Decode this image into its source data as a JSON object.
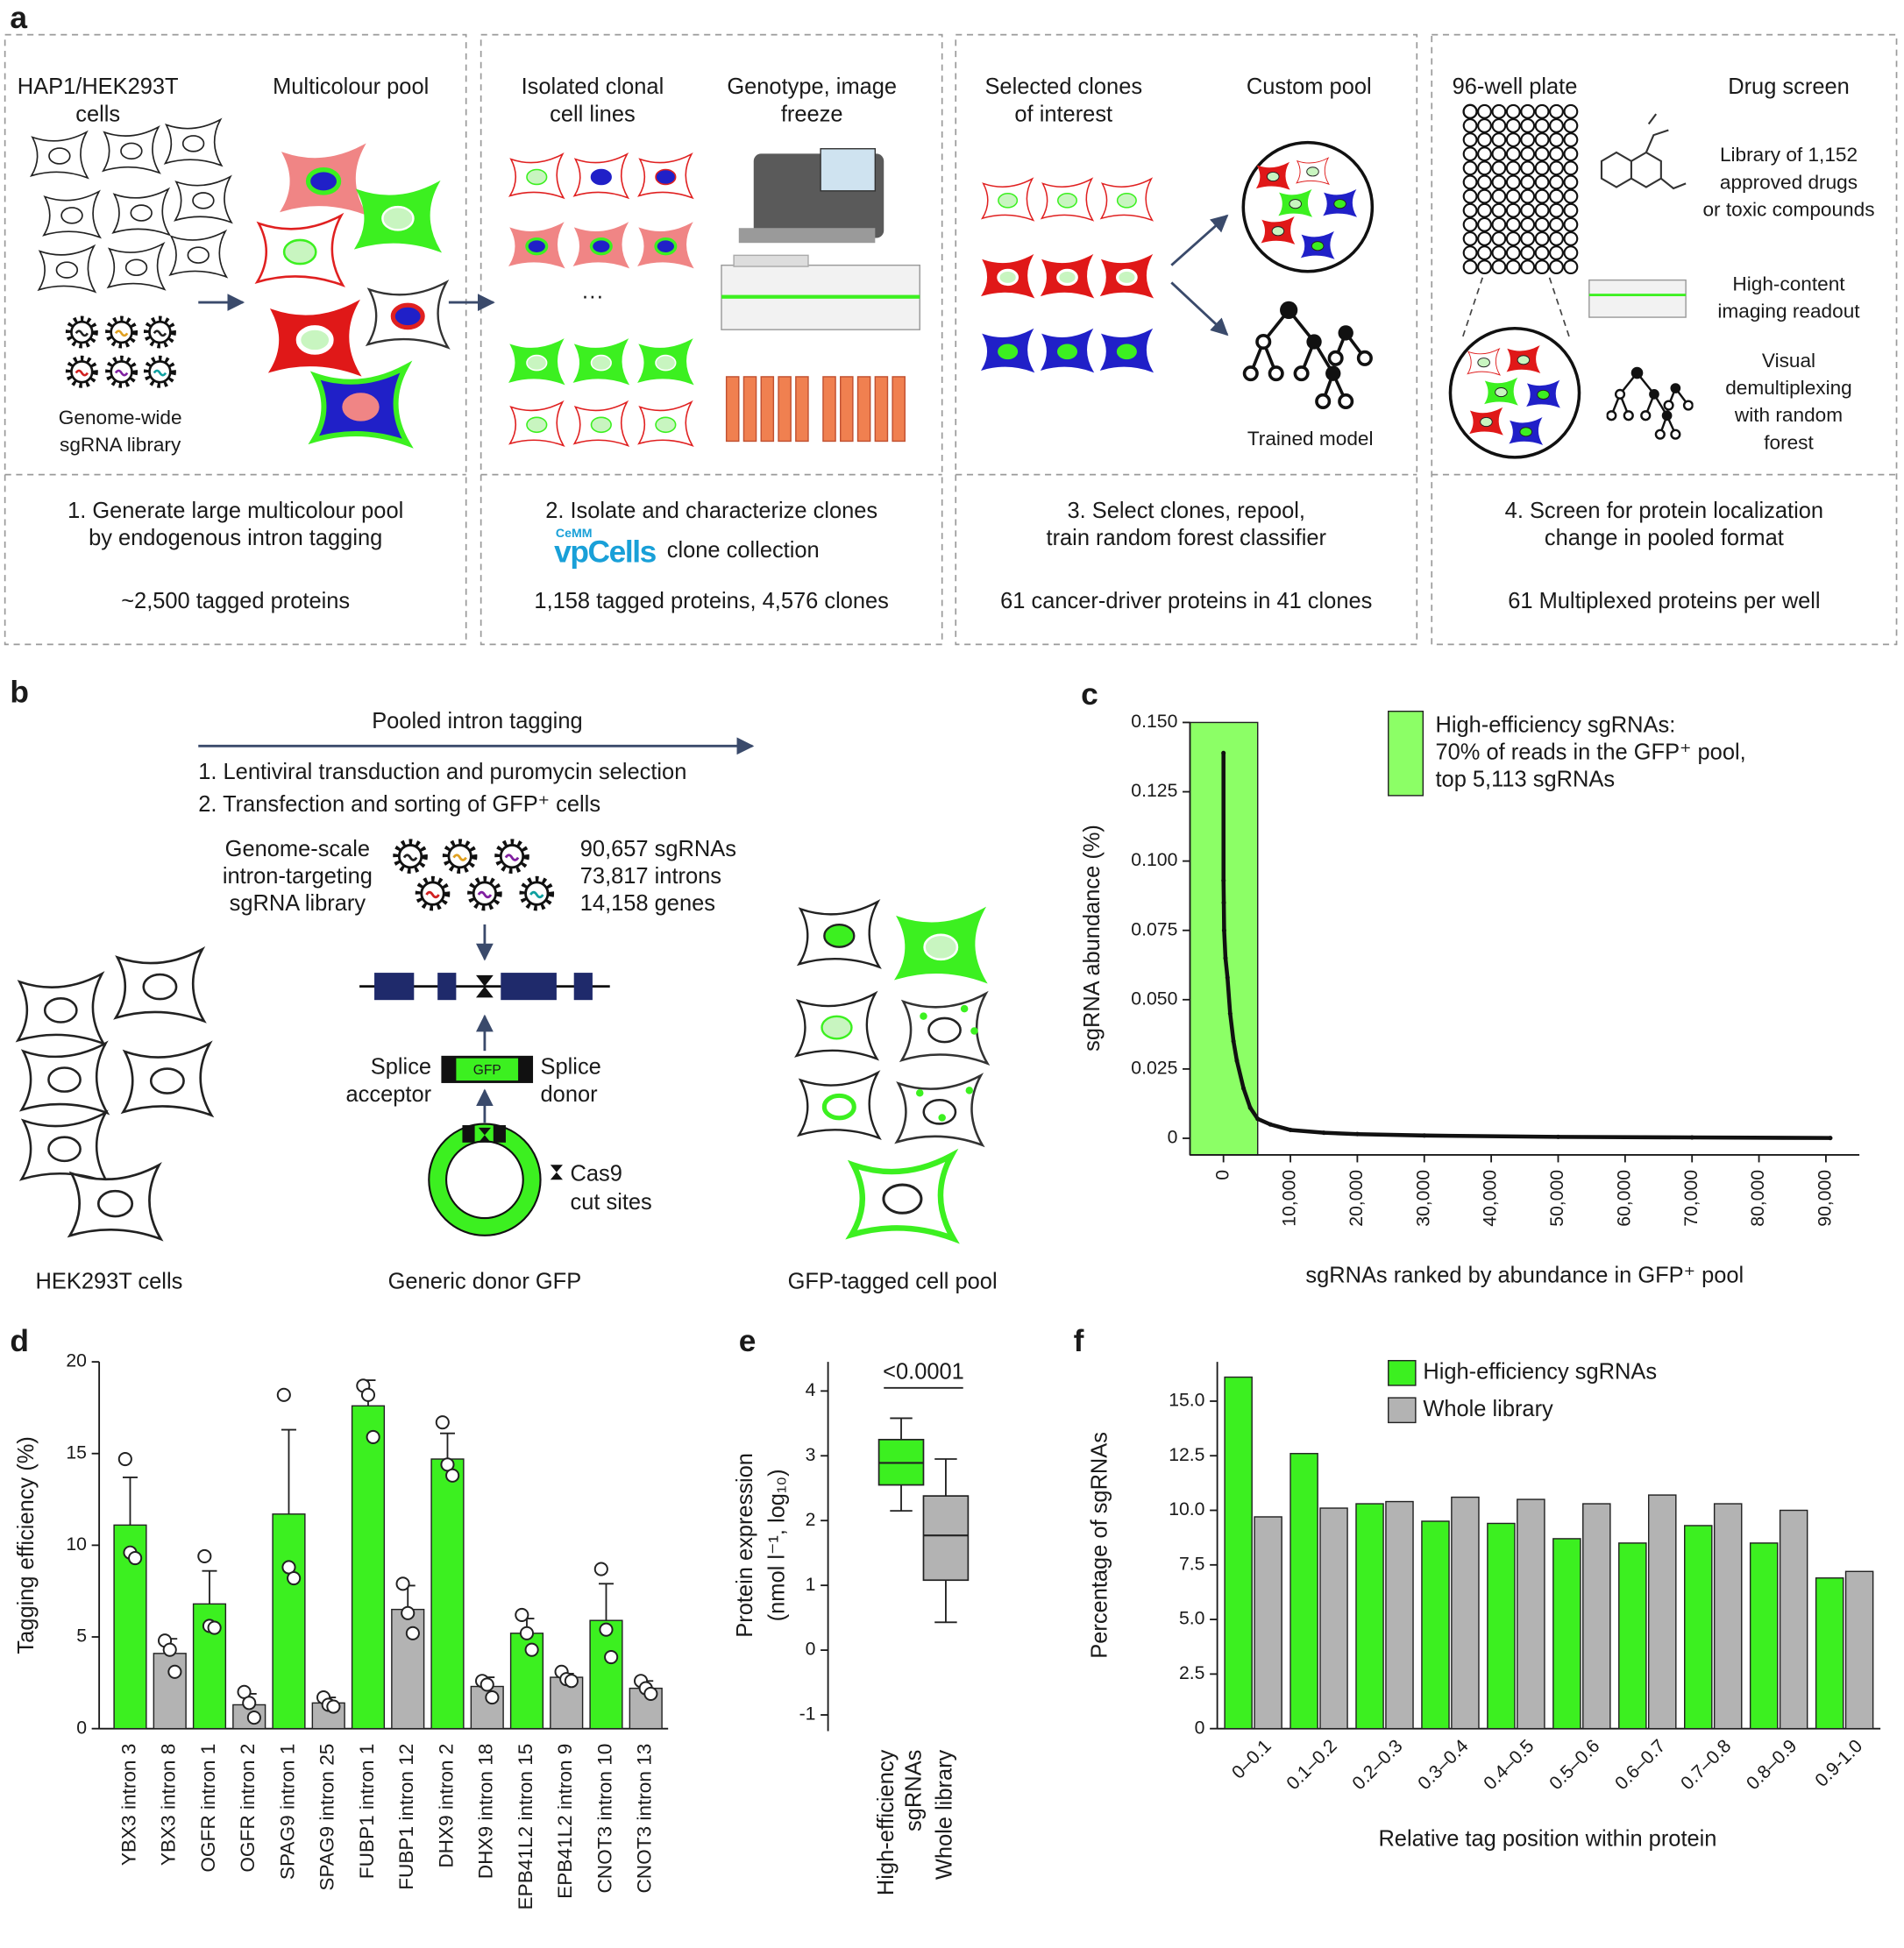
{
  "panel_a": {
    "label": "a",
    "steps": [
      {
        "headers": [
          [
            "HAP1/HEK293T",
            "cells"
          ],
          [
            "Multicolour pool"
          ]
        ],
        "notes": [
          [
            "Genome-wide",
            "sgRNA library"
          ]
        ],
        "caption": [
          "1. Generate large multicolour pool",
          "by endogenous intron tagging"
        ],
        "stat": "~2,500 tagged proteins"
      },
      {
        "headers": [
          [
            "Isolated clonal",
            "cell lines"
          ],
          [
            "Genotype, image",
            "freeze"
          ]
        ],
        "caption": [
          "2. Isolate and characterize clones"
        ],
        "brand": {
          "small": "CeMM",
          "logo": "vpCells",
          "text": "clone collection"
        },
        "stat": "1,158 tagged proteins, 4,576 clones"
      },
      {
        "headers": [
          [
            "Selected clones",
            "of interest"
          ],
          [
            "Custom pool"
          ]
        ],
        "notes": [
          [
            "Trained model"
          ]
        ],
        "caption": [
          "3. Select clones, repool,",
          "train random forest classifier"
        ],
        "stat": "61 cancer-driver proteins in 41 clones"
      },
      {
        "headers": [
          [
            "96-well plate"
          ],
          [
            "Drug screen"
          ]
        ],
        "notes": [
          [
            "Library of 1,152",
            "approved drugs",
            "or toxic compounds"
          ],
          [
            "High-content",
            "imaging readout"
          ],
          [
            "Visual",
            "demultiplexing",
            "with random",
            "forest"
          ]
        ],
        "caption": [
          "4. Screen for protein localization",
          "change in pooled format"
        ],
        "stat": "61 Multiplexed proteins per well"
      }
    ]
  },
  "panel_b": {
    "label": "b",
    "title": "Pooled intron tagging",
    "steps": [
      "1. Lentiviral transduction and puromycin selection",
      "2. Transfection and sorting of GFP⁺ cells"
    ],
    "library": [
      "Genome-scale",
      "intron-targeting",
      "sgRNA library"
    ],
    "library_stats": [
      "90,657 sgRNAs",
      "73,817 introns",
      "14,158 genes"
    ],
    "splice_acceptor": [
      "Splice",
      "acceptor"
    ],
    "gfp": "GFP",
    "splice_donor": [
      "Splice",
      "donor"
    ],
    "cut_sites": [
      "Cas9",
      "cut sites"
    ],
    "captions": [
      "HEK293T cells",
      "Generic donor GFP",
      "GFP-tagged cell pool"
    ]
  },
  "chart_data": [
    {
      "type": "line",
      "panel_label": "c",
      "ylabel": "sgRNA abundance (%)",
      "xlabel": "sgRNAs ranked by abundance in GFP⁺ pool",
      "x": [
        1,
        10,
        50,
        100,
        300,
        600,
        1000,
        1500,
        2000,
        3000,
        4000,
        5113,
        7000,
        10000,
        15000,
        20000,
        30000,
        50000,
        70000,
        90657
      ],
      "values": [
        0.139,
        0.093,
        0.085,
        0.075,
        0.065,
        0.058,
        0.045,
        0.035,
        0.028,
        0.018,
        0.011,
        0.007,
        0.005,
        0.003,
        0.002,
        0.0015,
        0.001,
        0.0005,
        0.0003,
        0.0001
      ],
      "color": "#111111",
      "shaded_region": {
        "xlim": [
          -5000,
          5113
        ],
        "color": "#8cff66",
        "label": [
          "High-efficiency sgRNAs:",
          "70% of reads in the GFP⁺ pool,",
          "top 5,113 sgRNAs"
        ]
      },
      "xlim": [
        -5000,
        95000
      ],
      "xticks": [
        0,
        {
          "value": 10000,
          "label": "10,000"
        },
        {
          "value": 20000,
          "label": "20,000"
        },
        {
          "value": 30000,
          "label": "30,000"
        },
        {
          "value": 40000,
          "label": "40,000"
        },
        {
          "value": 50000,
          "label": "50,000"
        },
        {
          "value": 60000,
          "label": "60,000"
        },
        {
          "value": 70000,
          "label": "70,000"
        },
        {
          "value": 80000,
          "label": "80,000"
        },
        {
          "value": 90000,
          "label": "90,000"
        }
      ],
      "ylim": [
        -0.006,
        0.15
      ],
      "yticks": [
        0,
        0.025,
        {
          "value": 0.05,
          "label": "0.050"
        },
        0.075,
        {
          "value": 0.1,
          "label": "0.100"
        },
        0.125,
        {
          "value": 0.15,
          "label": "0.150"
        }
      ]
    },
    {
      "type": "bar",
      "panel_label": "d",
      "ylabel": "Tagging efficiency (%)",
      "categories": [
        "YBX3 intron 3",
        "YBX3 intron 8",
        "OGFR intron 1",
        "OGFR intron 2",
        "SPAG9 intron 1",
        "SPAG9 intron 25",
        "FUBP1 intron 1",
        "FUBP1 intron 12",
        "DHX9 intron 2",
        "DHX9 intron 18",
        "EPB41L2 intron 15",
        "EPB41L2 intron 9",
        "CNOT3 intron 10",
        "CNOT3 intron 13"
      ],
      "values": [
        11.1,
        4.1,
        6.8,
        1.3,
        11.7,
        1.4,
        17.6,
        6.5,
        14.7,
        2.3,
        5.2,
        2.8,
        5.9,
        2.2
      ],
      "errors": [
        2.6,
        0.8,
        1.8,
        0.6,
        4.6,
        0.3,
        1.4,
        1.3,
        1.4,
        0.5,
        0.8,
        0.2,
        2.0,
        0.4
      ],
      "points": [
        [
          14.7,
          9.6,
          9.3
        ],
        [
          4.8,
          4.3,
          3.1
        ],
        [
          9.4,
          5.6,
          5.5
        ],
        [
          2.0,
          1.4,
          0.6
        ],
        [
          18.2,
          8.8,
          8.2
        ],
        [
          1.7,
          1.3,
          1.2
        ],
        [
          18.7,
          18.2,
          15.9
        ],
        [
          7.9,
          6.3,
          5.2
        ],
        [
          16.7,
          14.4,
          13.8
        ],
        [
          2.6,
          2.4,
          1.7
        ],
        [
          6.2,
          5.2,
          4.3
        ],
        [
          3.1,
          2.7,
          2.6
        ],
        [
          8.7,
          5.4,
          3.9
        ],
        [
          2.6,
          2.2,
          1.9
        ]
      ],
      "colors": [
        "#3cf020",
        "#b3b3b3",
        "#3cf020",
        "#b3b3b3",
        "#3cf020",
        "#b3b3b3",
        "#3cf020",
        "#b3b3b3",
        "#3cf020",
        "#b3b3b3",
        "#3cf020",
        "#b3b3b3",
        "#3cf020",
        "#b3b3b3"
      ],
      "ylim": [
        0,
        20
      ],
      "yticks": [
        0,
        5,
        10,
        15,
        20
      ]
    },
    {
      "type": "box",
      "panel_label": "e",
      "ylabel": [
        "Protein expression",
        "(nmol l⁻¹, log₁₀)"
      ],
      "annotation": "<0.0001",
      "categories": [
        [
          "High-efficiency",
          "sgRNAs"
        ],
        [
          "Whole library"
        ]
      ],
      "whisker_low": [
        2.15,
        0.43
      ],
      "q1": [
        2.55,
        1.08
      ],
      "median": [
        2.89,
        1.77
      ],
      "q3": [
        3.25,
        2.38
      ],
      "whisker_high": [
        3.58,
        2.95
      ],
      "colors": [
        "#3cf020",
        "#b3b3b3"
      ],
      "ylim": [
        -1.25,
        4.45
      ],
      "yticks": [
        -1,
        0,
        1,
        2,
        3,
        4
      ]
    },
    {
      "type": "bar",
      "panel_label": "f",
      "ylabel": "Percentage of sgRNAs",
      "xlabel": "Relative tag position within protein",
      "categories": [
        "0–0.1",
        "0.1–0.2",
        "0.2–0.3",
        "0.3–0.4",
        "0.4–0.5",
        "0.5–0.6",
        "0.6–0.7",
        "0.7–0.8",
        "0.8–0.9",
        "0.9-1.0"
      ],
      "series": [
        {
          "name": "High-efficiency sgRNAs",
          "color": "#3cf020",
          "values": [
            16.1,
            12.6,
            10.3,
            9.5,
            9.4,
            8.7,
            8.5,
            9.3,
            8.5,
            6.9
          ]
        },
        {
          "name": "Whole library",
          "color": "#b3b3b3",
          "values": [
            9.7,
            10.1,
            10.4,
            10.6,
            10.5,
            10.3,
            10.7,
            10.3,
            10.0,
            7.2
          ]
        }
      ],
      "ylim": [
        0,
        16.8
      ],
      "yticks": [
        0,
        2.5,
        {
          "value": 5,
          "label": "5.0"
        },
        7.5,
        {
          "value": 10,
          "label": "10.0"
        },
        12.5,
        {
          "value": 15,
          "label": "15.0"
        }
      ]
    }
  ]
}
